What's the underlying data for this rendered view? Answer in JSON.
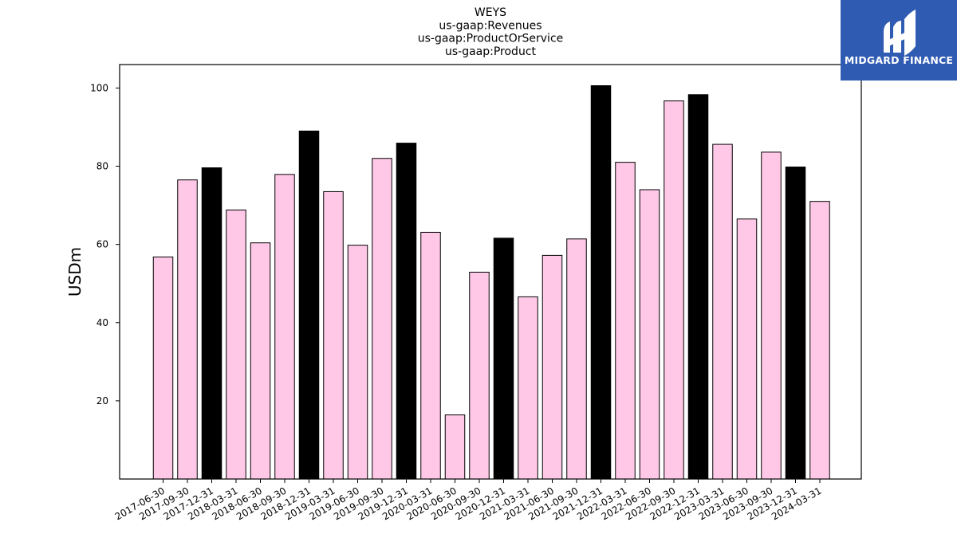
{
  "brand": {
    "name": "MIDGARD FINANCE",
    "color": "#2f5bb3",
    "icon": "midgard-logo-icon"
  },
  "chart_data": {
    "type": "bar",
    "title_lines": [
      "WEYS",
      "us-gaap:Revenues",
      "us-gaap:ProductOrService",
      "us-gaap:Product"
    ],
    "xlabel": "",
    "ylabel": "USDm",
    "ylim": [
      0,
      106
    ],
    "yticks": [
      20,
      40,
      60,
      80,
      100
    ],
    "grid": false,
    "colors": {
      "regular": "#ffc8e6",
      "year_end": "#000000",
      "edge": "#000000"
    },
    "categories": [
      "2017-06-30",
      "2017-09-30",
      "2017-12-31",
      "2018-03-31",
      "2018-06-30",
      "2018-09-30",
      "2018-12-31",
      "2019-03-31",
      "2019-06-30",
      "2019-09-30",
      "2019-12-31",
      "2020-03-31",
      "2020-06-30",
      "2020-09-30",
      "2020-12-31",
      "2021-03-31",
      "2021-06-30",
      "2021-09-30",
      "2021-12-31",
      "2022-03-31",
      "2022-06-30",
      "2022-09-30",
      "2022-12-31",
      "2023-03-31",
      "2023-06-30",
      "2023-09-30",
      "2023-12-31",
      "2024-03-31"
    ],
    "values": [
      56.8,
      76.5,
      79.6,
      68.8,
      60.4,
      77.9,
      89.0,
      73.5,
      59.8,
      82.0,
      85.9,
      63.1,
      16.4,
      52.9,
      61.6,
      46.6,
      57.2,
      61.4,
      100.6,
      81.0,
      74.0,
      96.7,
      98.3,
      85.6,
      66.5,
      83.6,
      79.8,
      71.0
    ]
  }
}
